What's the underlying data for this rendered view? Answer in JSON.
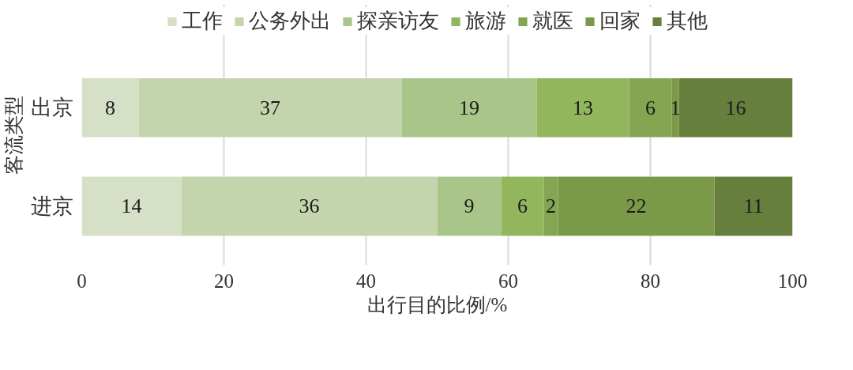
{
  "chart_data": {
    "type": "bar",
    "orientation": "horizontal",
    "stacked": true,
    "xlabel": "出行目的比例/%",
    "ylabel": "客流类型",
    "categories": [
      "出京",
      "进京"
    ],
    "series": [
      {
        "name": "工作",
        "color": "#d5e0c6",
        "values": [
          8,
          14
        ]
      },
      {
        "name": "公务外出",
        "color": "#c4d5ae",
        "values": [
          37,
          36
        ]
      },
      {
        "name": "探亲访友",
        "color": "#a9c58a",
        "values": [
          19,
          9
        ]
      },
      {
        "name": "旅游",
        "color": "#92b65c",
        "values": [
          13,
          6
        ]
      },
      {
        "name": "就医",
        "color": "#84a653",
        "values": [
          6,
          2
        ]
      },
      {
        "name": "回家",
        "color": "#7a9a49",
        "values": [
          1,
          22
        ]
      },
      {
        "name": "其他",
        "color": "#667f3d",
        "values": [
          16,
          11
        ]
      }
    ],
    "xlim": [
      0,
      100
    ],
    "xticks": [
      0,
      20,
      40,
      60,
      80,
      100
    ],
    "grid": "x",
    "legend": "top",
    "data_labels": true
  }
}
